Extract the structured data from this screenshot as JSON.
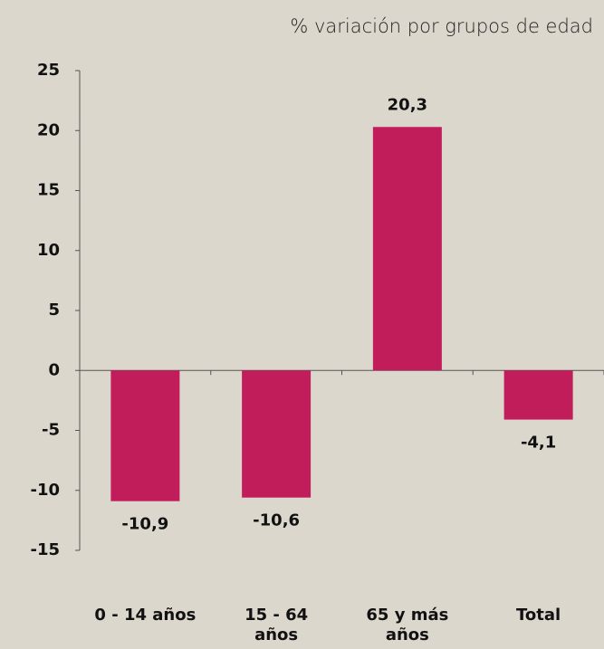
{
  "chart_data": {
    "type": "bar",
    "title": "% variación por grupos de edad",
    "categories": [
      "0 - 14 años",
      "15 - 64 años",
      "65 y más años",
      "Total"
    ],
    "values": [
      -10.9,
      -10.6,
      20.3,
      -4.1
    ],
    "value_labels": [
      "-10,9",
      "-10,6",
      "20,3",
      "-4,1"
    ],
    "color": "#c21d5b",
    "ylim": [
      -15,
      25
    ],
    "yticks": [
      -15,
      -10,
      -5,
      0,
      5,
      10,
      15,
      20,
      25
    ],
    "grid": false
  }
}
